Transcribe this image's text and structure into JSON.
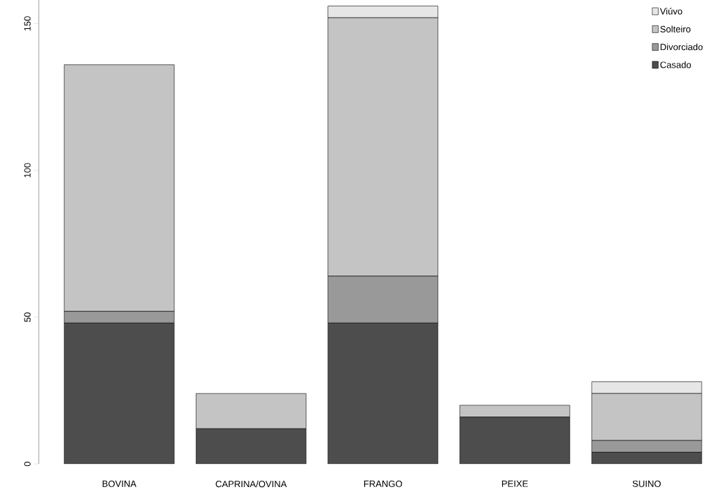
{
  "chart_data": {
    "type": "bar",
    "stacked": true,
    "categories": [
      "BOVINA",
      "CAPRINA/OVINA",
      "FRANGO",
      "PEIXE",
      "SUINO"
    ],
    "series": [
      {
        "name": "Casado",
        "color": "#4d4d4d",
        "values": [
          48,
          12,
          48,
          16,
          4
        ]
      },
      {
        "name": "Divorciado",
        "color": "#999999",
        "values": [
          4,
          0,
          16,
          0,
          4
        ]
      },
      {
        "name": "Solteiro",
        "color": "#c4c4c4",
        "values": [
          84,
          12,
          88,
          4,
          16
        ]
      },
      {
        "name": "Viúvo",
        "color": "#e6e6e6",
        "values": [
          0,
          0,
          4,
          0,
          4
        ]
      }
    ],
    "ylim": [
      0,
      158
    ],
    "yticks": [
      0,
      50,
      100,
      150
    ],
    "grid": false,
    "legend": "top right"
  }
}
